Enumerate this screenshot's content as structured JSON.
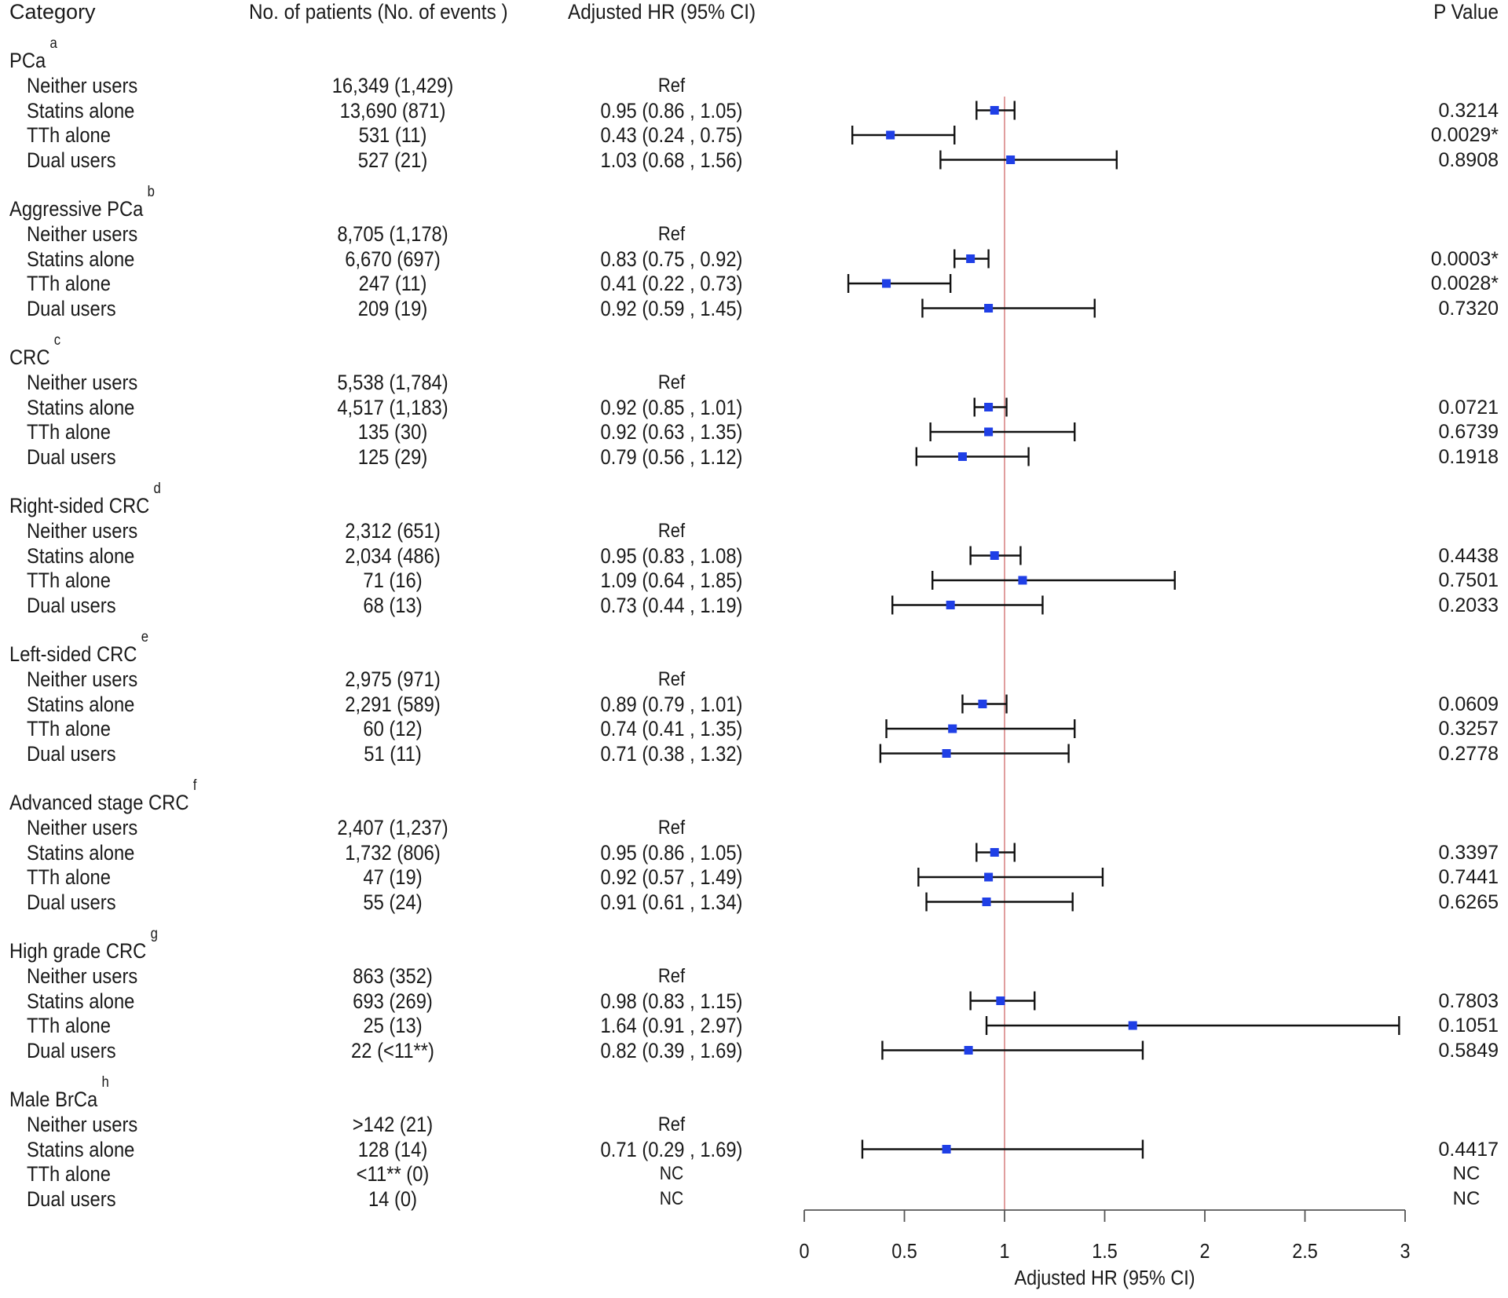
{
  "headers": {
    "category": "Category",
    "patients": "No. of patients (No. of events )",
    "hr": "Adjusted HR (95% CI)",
    "pvalue": "P Value"
  },
  "groups": [
    {
      "title": "PCa",
      "sup": "a",
      "rows": [
        {
          "label": "Neither users",
          "patients": "16,349 (1,429)",
          "hr_text": "Ref",
          "p": ""
        },
        {
          "label": "Statins alone",
          "patients": "13,690 (871)",
          "hr_text": "0.95 (0.86 , 1.05)",
          "p": "0.3214"
        },
        {
          "label": "TTh alone",
          "patients": "531 (11)",
          "hr_text": "0.43 (0.24 , 0.75)",
          "p": "0.0029*"
        },
        {
          "label": "Dual users",
          "patients": "527 (21)",
          "hr_text": "1.03 (0.68 , 1.56)",
          "p": "0.8908"
        }
      ]
    },
    {
      "title": "Aggressive PCa",
      "sup": "b",
      "rows": [
        {
          "label": "Neither users",
          "patients": "8,705 (1,178)",
          "hr_text": "Ref",
          "p": ""
        },
        {
          "label": "Statins alone",
          "patients": "6,670 (697)",
          "hr_text": "0.83 (0.75 , 0.92)",
          "p": "0.0003*"
        },
        {
          "label": "TTh alone",
          "patients": "247 (11)",
          "hr_text": "0.41 (0.22 , 0.73)",
          "p": "0.0028*"
        },
        {
          "label": "Dual users",
          "patients": "209 (19)",
          "hr_text": "0.92 (0.59 , 1.45)",
          "p": "0.7320"
        }
      ]
    },
    {
      "title": "CRC",
      "sup": "c",
      "rows": [
        {
          "label": "Neither users",
          "patients": "5,538 (1,784)",
          "hr_text": "Ref",
          "p": ""
        },
        {
          "label": "Statins alone",
          "patients": "4,517 (1,183)",
          "hr_text": "0.92 (0.85 , 1.01)",
          "p": "0.0721"
        },
        {
          "label": "TTh alone",
          "patients": "135 (30)",
          "hr_text": "0.92 (0.63 , 1.35)",
          "p": "0.6739"
        },
        {
          "label": "Dual users",
          "patients": "125 (29)",
          "hr_text": "0.79 (0.56 , 1.12)",
          "p": "0.1918"
        }
      ]
    },
    {
      "title": "Right-sided CRC",
      "sup": "d",
      "rows": [
        {
          "label": "Neither users",
          "patients": "2,312 (651)",
          "hr_text": "Ref",
          "p": ""
        },
        {
          "label": "Statins alone",
          "patients": "2,034 (486)",
          "hr_text": "0.95 (0.83 , 1.08)",
          "p": "0.4438"
        },
        {
          "label": "TTh alone",
          "patients": "71 (16)",
          "hr_text": "1.09 (0.64 , 1.85)",
          "p": "0.7501"
        },
        {
          "label": "Dual users",
          "patients": "68 (13)",
          "hr_text": "0.73 (0.44 , 1.19)",
          "p": "0.2033"
        }
      ]
    },
    {
      "title": "Left-sided CRC",
      "sup": "e",
      "rows": [
        {
          "label": "Neither users",
          "patients": "2,975 (971)",
          "hr_text": "Ref",
          "p": ""
        },
        {
          "label": "Statins alone",
          "patients": "2,291 (589)",
          "hr_text": "0.89 (0.79 , 1.01)",
          "p": "0.0609"
        },
        {
          "label": "TTh alone",
          "patients": "60 (12)",
          "hr_text": "0.74 (0.41 , 1.35)",
          "p": "0.3257"
        },
        {
          "label": "Dual users",
          "patients": "51 (11)",
          "hr_text": "0.71 (0.38 , 1.32)",
          "p": "0.2778"
        }
      ]
    },
    {
      "title": "Advanced stage CRC",
      "sup": "f",
      "rows": [
        {
          "label": "Neither users",
          "patients": "2,407 (1,237)",
          "hr_text": "Ref",
          "p": ""
        },
        {
          "label": "Statins alone",
          "patients": "1,732 (806)",
          "hr_text": "0.95 (0.86 , 1.05)",
          "p": "0.3397"
        },
        {
          "label": "TTh alone",
          "patients": "47 (19)",
          "hr_text": "0.92 (0.57 , 1.49)",
          "p": "0.7441"
        },
        {
          "label": "Dual users",
          "patients": "55 (24)",
          "hr_text": "0.91 (0.61 , 1.34)",
          "p": "0.6265"
        }
      ]
    },
    {
      "title": "High grade CRC",
      "sup": "g",
      "rows": [
        {
          "label": "Neither users",
          "patients": "863 (352)",
          "hr_text": "Ref",
          "p": ""
        },
        {
          "label": "Statins alone",
          "patients": "693 (269)",
          "hr_text": "0.98 (0.83 , 1.15)",
          "p": "0.7803"
        },
        {
          "label": "TTh alone",
          "patients": "25 (13)",
          "hr_text": "1.64 (0.91 , 2.97)",
          "p": "0.1051"
        },
        {
          "label": "Dual users",
          "patients": "22 (<11**)",
          "hr_text": "0.82 (0.39 , 1.69)",
          "p": "0.5849"
        }
      ]
    },
    {
      "title": "Male BrCa",
      "sup": "h",
      "rows": [
        {
          "label": "Neither users",
          "patients": ">142 (21)",
          "hr_text": "Ref",
          "p": ""
        },
        {
          "label": "Statins alone",
          "patients": "128 (14)",
          "hr_text": "0.71 (0.29 , 1.69)",
          "p": "0.4417"
        },
        {
          "label": "TTh alone",
          "patients": "<11** (0)",
          "hr_text": "NC",
          "p": "NC"
        },
        {
          "label": "Dual users",
          "patients": "14 (0)",
          "hr_text": "NC",
          "p": "NC"
        }
      ]
    }
  ],
  "chart_data": {
    "type": "scatter",
    "subtype": "forest",
    "title": "",
    "xlabel": "Adjusted HR (95% CI)",
    "ylabel": "",
    "xlim": [
      0,
      3
    ],
    "xticks": [
      0,
      0.5,
      1,
      1.5,
      2,
      2.5,
      3
    ],
    "xtick_labels": [
      "0",
      "0.5",
      "1",
      "1.5",
      "2",
      "2.5",
      "3"
    ],
    "reference_line": 1,
    "grid": false,
    "colors": {
      "marker": "#1f3fe6",
      "ci": "#111111",
      "reference": "#d98585",
      "axis": "#555555"
    },
    "series": [
      {
        "group": "PCa",
        "points": [
          {
            "row": "Statins alone",
            "hr": 0.95,
            "lo": 0.86,
            "hi": 1.05
          },
          {
            "row": "TTh alone",
            "hr": 0.43,
            "lo": 0.24,
            "hi": 0.75
          },
          {
            "row": "Dual users",
            "hr": 1.03,
            "lo": 0.68,
            "hi": 1.56
          }
        ]
      },
      {
        "group": "Aggressive PCa",
        "points": [
          {
            "row": "Statins alone",
            "hr": 0.83,
            "lo": 0.75,
            "hi": 0.92
          },
          {
            "row": "TTh alone",
            "hr": 0.41,
            "lo": 0.22,
            "hi": 0.73
          },
          {
            "row": "Dual users",
            "hr": 0.92,
            "lo": 0.59,
            "hi": 1.45
          }
        ]
      },
      {
        "group": "CRC",
        "points": [
          {
            "row": "Statins alone",
            "hr": 0.92,
            "lo": 0.85,
            "hi": 1.01
          },
          {
            "row": "TTh alone",
            "hr": 0.92,
            "lo": 0.63,
            "hi": 1.35
          },
          {
            "row": "Dual users",
            "hr": 0.79,
            "lo": 0.56,
            "hi": 1.12
          }
        ]
      },
      {
        "group": "Right-sided CRC",
        "points": [
          {
            "row": "Statins alone",
            "hr": 0.95,
            "lo": 0.83,
            "hi": 1.08
          },
          {
            "row": "TTh alone",
            "hr": 1.09,
            "lo": 0.64,
            "hi": 1.85
          },
          {
            "row": "Dual users",
            "hr": 0.73,
            "lo": 0.44,
            "hi": 1.19
          }
        ]
      },
      {
        "group": "Left-sided CRC",
        "points": [
          {
            "row": "Statins alone",
            "hr": 0.89,
            "lo": 0.79,
            "hi": 1.01
          },
          {
            "row": "TTh alone",
            "hr": 0.74,
            "lo": 0.41,
            "hi": 1.35
          },
          {
            "row": "Dual users",
            "hr": 0.71,
            "lo": 0.38,
            "hi": 1.32
          }
        ]
      },
      {
        "group": "Advanced stage CRC",
        "points": [
          {
            "row": "Statins alone",
            "hr": 0.95,
            "lo": 0.86,
            "hi": 1.05
          },
          {
            "row": "TTh alone",
            "hr": 0.92,
            "lo": 0.57,
            "hi": 1.49
          },
          {
            "row": "Dual users",
            "hr": 0.91,
            "lo": 0.61,
            "hi": 1.34
          }
        ]
      },
      {
        "group": "High grade CRC",
        "points": [
          {
            "row": "Statins alone",
            "hr": 0.98,
            "lo": 0.83,
            "hi": 1.15
          },
          {
            "row": "TTh alone",
            "hr": 1.64,
            "lo": 0.91,
            "hi": 2.97
          },
          {
            "row": "Dual users",
            "hr": 0.82,
            "lo": 0.39,
            "hi": 1.69
          }
        ]
      },
      {
        "group": "Male BrCa",
        "points": [
          {
            "row": "Statins alone",
            "hr": 0.71,
            "lo": 0.29,
            "hi": 1.69
          }
        ]
      }
    ]
  }
}
